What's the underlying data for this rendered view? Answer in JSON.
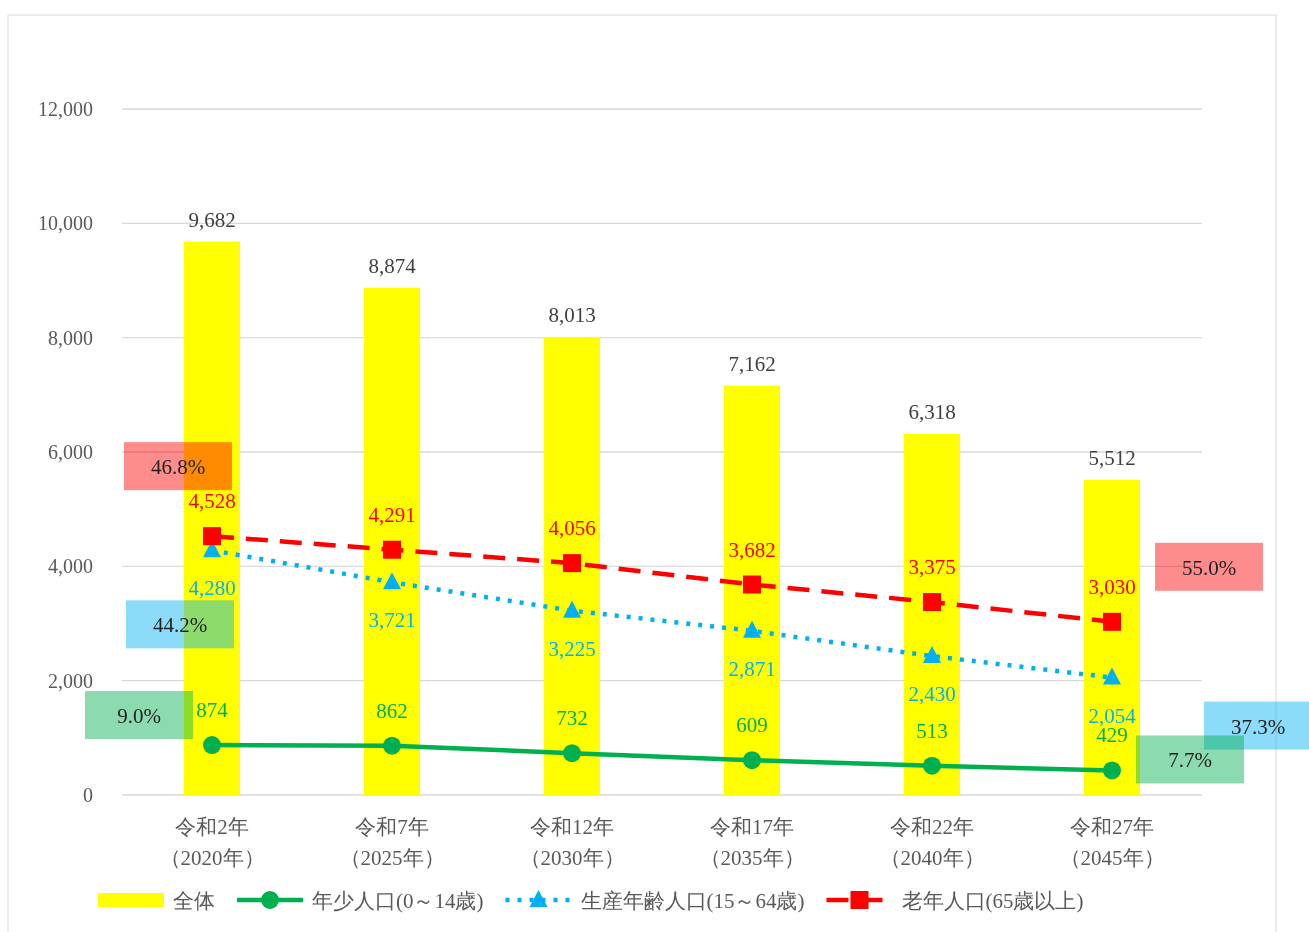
{
  "chart_data": {
    "type": "bar",
    "categories": [
      "令和2年（2020年）",
      "令和7年（2025年）",
      "令和12年（2030年）",
      "令和17年（2035年）",
      "令和22年（2040年）",
      "令和27年（2045年）"
    ],
    "series": [
      {
        "name": "全体",
        "color": "#ffff00",
        "values": [
          9682,
          8874,
          8013,
          7162,
          6318,
          5512
        ],
        "value_labels": [
          "9,682",
          "8,874",
          "8,013",
          "7,162",
          "6,318",
          "5,512"
        ]
      },
      {
        "name": "年少人口(0～14歳)",
        "type": "line",
        "color": "#00b050",
        "marker": "circle",
        "line_style": "solid",
        "values": [
          874,
          862,
          732,
          609,
          513,
          429
        ],
        "value_labels": [
          "874",
          "862",
          "732",
          "609",
          "513",
          "429"
        ]
      },
      {
        "name": "生産年齢人口(15～64歳)",
        "type": "line",
        "color": "#00b0f0",
        "marker": "triangle",
        "line_style": "dotted",
        "values": [
          4280,
          3721,
          3225,
          2871,
          2430,
          2054
        ],
        "value_labels": [
          "4,280",
          "3,721",
          "3,225",
          "2,871",
          "2,430",
          "2,054"
        ]
      },
      {
        "name": "老年人口(65歳以上)",
        "type": "line",
        "color": "#ff0000",
        "marker": "square",
        "line_style": "dashed",
        "values": [
          4528,
          4291,
          4056,
          3682,
          3375,
          3030
        ],
        "value_labels": [
          "4,528",
          "4,291",
          "4,056",
          "3,682",
          "3,375",
          "3,030"
        ]
      }
    ],
    "ylim": [
      0,
      12000
    ],
    "yticks": [
      0,
      {
        "value": 2000,
        "label": "2,000"
      },
      {
        "value": 4000,
        "label": "4,000"
      },
      {
        "value": 6000,
        "label": "6,000"
      },
      {
        "value": 8000,
        "label": "8,000"
      },
      {
        "value": 10000,
        "label": "10,000"
      },
      {
        "value": 12000,
        "label": "12,000"
      }
    ],
    "grid": "y",
    "legend": "bottom",
    "annotations": [
      "46.8%",
      "44.2%",
      "9.0%",
      "55.0%",
      "37.3%",
      "7.7%"
    ]
  }
}
